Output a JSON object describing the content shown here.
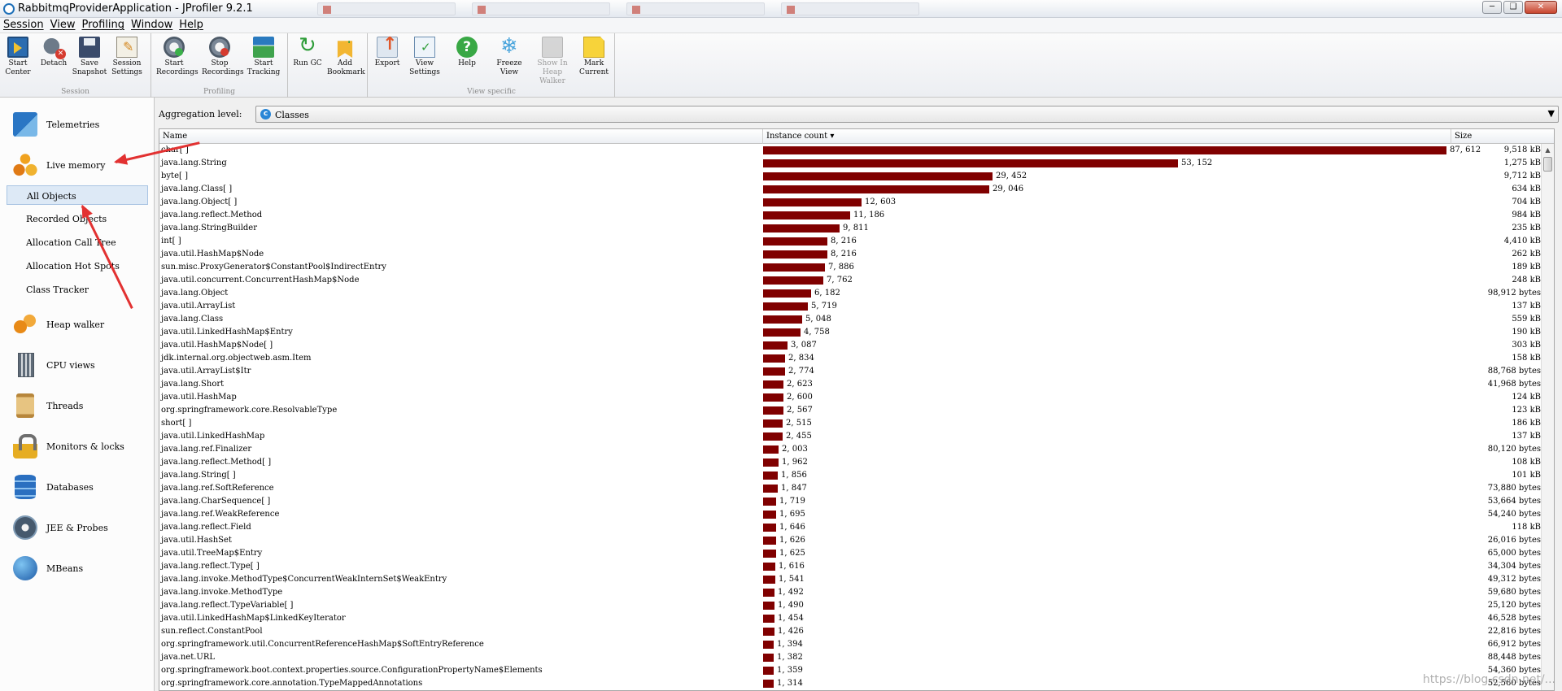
{
  "window": {
    "title": "RabbitmqProviderApplication - JProfiler 9.2.1"
  },
  "menu": [
    "Session",
    "View",
    "Profiling",
    "Window",
    "Help"
  ],
  "toolbar": {
    "groups": [
      {
        "label": "Session",
        "buttons": [
          {
            "label": "Start\nCenter",
            "icon": "start-center-icon"
          },
          {
            "label": "Detach",
            "icon": "detach-icon"
          },
          {
            "label": "Save\nSnapshot",
            "icon": "save-icon"
          },
          {
            "label": "Session\nSettings",
            "icon": "session-settings-icon"
          }
        ]
      },
      {
        "label": "Profiling",
        "buttons": [
          {
            "label": "Start\nRecordings",
            "icon": "start-recordings-icon"
          },
          {
            "label": "Stop\nRecordings",
            "icon": "stop-recordings-icon"
          },
          {
            "label": "Start\nTracking",
            "icon": "start-tracking-icon"
          }
        ]
      },
      {
        "label": "",
        "buttons": [
          {
            "label": "Run GC",
            "icon": "run-gc-icon"
          },
          {
            "label": "Add\nBookmark",
            "icon": "add-bookmark-icon"
          }
        ]
      },
      {
        "label": "View specific",
        "buttons": [
          {
            "label": "Export",
            "icon": "export-icon"
          },
          {
            "label": "View\nSettings",
            "icon": "view-settings-icon"
          },
          {
            "label": "Help",
            "icon": "help-icon"
          },
          {
            "label": "Freeze\nView",
            "icon": "freeze-view-icon"
          },
          {
            "label": "Show In\nHeap Walker",
            "icon": "show-heap-walker-icon",
            "disabled": true
          },
          {
            "label": "Mark\nCurrent",
            "icon": "mark-current-icon"
          }
        ]
      }
    ]
  },
  "sidebar": {
    "items": [
      {
        "label": "Telemetries",
        "icon": "telemetries-icon"
      },
      {
        "label": "Live memory",
        "icon": "live-memory-icon"
      },
      {
        "label": "Heap walker",
        "icon": "heap-walker-icon"
      },
      {
        "label": "CPU views",
        "icon": "cpu-views-icon"
      },
      {
        "label": "Threads",
        "icon": "threads-icon"
      },
      {
        "label": "Monitors & locks",
        "icon": "monitors-locks-icon"
      },
      {
        "label": "Databases",
        "icon": "databases-icon"
      },
      {
        "label": "JEE & Probes",
        "icon": "jee-probes-icon"
      },
      {
        "label": "MBeans",
        "icon": "mbeans-icon"
      }
    ],
    "live_memory_sub": [
      "All Objects",
      "Recorded Objects",
      "Allocation Call Tree",
      "Allocation Hot Spots",
      "Class Tracker"
    ],
    "selected_sub": "All Objects"
  },
  "aggregation": {
    "label": "Aggregation level:",
    "value": "Classes"
  },
  "table": {
    "columns": [
      "Name",
      "Instance count ▾",
      "Size"
    ],
    "max_count": 87612,
    "rows": [
      {
        "name": "char[ ]",
        "count": 87612,
        "count_text": "87, 612",
        "size": "9,518 kB"
      },
      {
        "name": "java.lang.String",
        "count": 53152,
        "count_text": "53, 152",
        "size": "1,275 kB"
      },
      {
        "name": "byte[ ]",
        "count": 29452,
        "count_text": "29, 452",
        "size": "9,712 kB"
      },
      {
        "name": "java.lang.Class[ ]",
        "count": 29046,
        "count_text": "29, 046",
        "size": "634 kB"
      },
      {
        "name": "java.lang.Object[ ]",
        "count": 12603,
        "count_text": "12, 603",
        "size": "704 kB"
      },
      {
        "name": "java.lang.reflect.Method",
        "count": 11186,
        "count_text": "11, 186",
        "size": "984 kB"
      },
      {
        "name": "java.lang.StringBuilder",
        "count": 9811,
        "count_text": "9, 811",
        "size": "235 kB"
      },
      {
        "name": "int[ ]",
        "count": 8216,
        "count_text": "8, 216",
        "size": "4,410 kB"
      },
      {
        "name": "java.util.HashMap$Node",
        "count": 8216,
        "count_text": "8, 216",
        "size": "262 kB"
      },
      {
        "name": "sun.misc.ProxyGenerator$ConstantPool$IndirectEntry",
        "count": 7886,
        "count_text": "7, 886",
        "size": "189 kB"
      },
      {
        "name": "java.util.concurrent.ConcurrentHashMap$Node",
        "count": 7762,
        "count_text": "7, 762",
        "size": "248 kB"
      },
      {
        "name": "java.lang.Object",
        "count": 6182,
        "count_text": "6, 182",
        "size": "98,912 bytes"
      },
      {
        "name": "java.util.ArrayList",
        "count": 5719,
        "count_text": "5, 719",
        "size": "137 kB"
      },
      {
        "name": "java.lang.Class",
        "count": 5048,
        "count_text": "5, 048",
        "size": "559 kB"
      },
      {
        "name": "java.util.LinkedHashMap$Entry",
        "count": 4758,
        "count_text": "4, 758",
        "size": "190 kB"
      },
      {
        "name": "java.util.HashMap$Node[ ]",
        "count": 3087,
        "count_text": "3, 087",
        "size": "303 kB"
      },
      {
        "name": "jdk.internal.org.objectweb.asm.Item",
        "count": 2834,
        "count_text": "2, 834",
        "size": "158 kB"
      },
      {
        "name": "java.util.ArrayList$Itr",
        "count": 2774,
        "count_text": "2, 774",
        "size": "88,768 bytes"
      },
      {
        "name": "java.lang.Short",
        "count": 2623,
        "count_text": "2, 623",
        "size": "41,968 bytes"
      },
      {
        "name": "java.util.HashMap",
        "count": 2600,
        "count_text": "2, 600",
        "size": "124 kB"
      },
      {
        "name": "org.springframework.core.ResolvableType",
        "count": 2567,
        "count_text": "2, 567",
        "size": "123 kB"
      },
      {
        "name": "short[ ]",
        "count": 2515,
        "count_text": "2, 515",
        "size": "186 kB"
      },
      {
        "name": "java.util.LinkedHashMap",
        "count": 2455,
        "count_text": "2, 455",
        "size": "137 kB"
      },
      {
        "name": "java.lang.ref.Finalizer",
        "count": 2003,
        "count_text": "2, 003",
        "size": "80,120 bytes"
      },
      {
        "name": "java.lang.reflect.Method[ ]",
        "count": 1962,
        "count_text": "1, 962",
        "size": "108 kB"
      },
      {
        "name": "java.lang.String[ ]",
        "count": 1856,
        "count_text": "1, 856",
        "size": "101 kB"
      },
      {
        "name": "java.lang.ref.SoftReference",
        "count": 1847,
        "count_text": "1, 847",
        "size": "73,880 bytes"
      },
      {
        "name": "java.lang.CharSequence[ ]",
        "count": 1719,
        "count_text": "1, 719",
        "size": "53,664 bytes"
      },
      {
        "name": "java.lang.ref.WeakReference",
        "count": 1695,
        "count_text": "1, 695",
        "size": "54,240 bytes"
      },
      {
        "name": "java.lang.reflect.Field",
        "count": 1646,
        "count_text": "1, 646",
        "size": "118 kB"
      },
      {
        "name": "java.util.HashSet",
        "count": 1626,
        "count_text": "1, 626",
        "size": "26,016 bytes"
      },
      {
        "name": "java.util.TreeMap$Entry",
        "count": 1625,
        "count_text": "1, 625",
        "size": "65,000 bytes"
      },
      {
        "name": "java.lang.reflect.Type[ ]",
        "count": 1616,
        "count_text": "1, 616",
        "size": "34,304 bytes"
      },
      {
        "name": "java.lang.invoke.MethodType$ConcurrentWeakInternSet$WeakEntry",
        "count": 1541,
        "count_text": "1, 541",
        "size": "49,312 bytes"
      },
      {
        "name": "java.lang.invoke.MethodType",
        "count": 1492,
        "count_text": "1, 492",
        "size": "59,680 bytes"
      },
      {
        "name": "java.lang.reflect.TypeVariable[ ]",
        "count": 1490,
        "count_text": "1, 490",
        "size": "25,120 bytes"
      },
      {
        "name": "java.util.LinkedHashMap$LinkedKeyIterator",
        "count": 1454,
        "count_text": "1, 454",
        "size": "46,528 bytes"
      },
      {
        "name": "sun.reflect.ConstantPool",
        "count": 1426,
        "count_text": "1, 426",
        "size": "22,816 bytes"
      },
      {
        "name": "org.springframework.util.ConcurrentReferenceHashMap$SoftEntryReference",
        "count": 1394,
        "count_text": "1, 394",
        "size": "66,912 bytes"
      },
      {
        "name": "java.net.URL",
        "count": 1382,
        "count_text": "1, 382",
        "size": "88,448 bytes"
      },
      {
        "name": "org.springframework.boot.context.properties.source.ConfigurationPropertyName$Elements",
        "count": 1359,
        "count_text": "1, 359",
        "size": "54,360 bytes"
      },
      {
        "name": "org.springframework.core.annotation.TypeMappedAnnotations",
        "count": 1314,
        "count_text": "1, 314",
        "size": "52,560 bytes"
      }
    ]
  },
  "watermark": "https://blog.csdn.net/..."
}
